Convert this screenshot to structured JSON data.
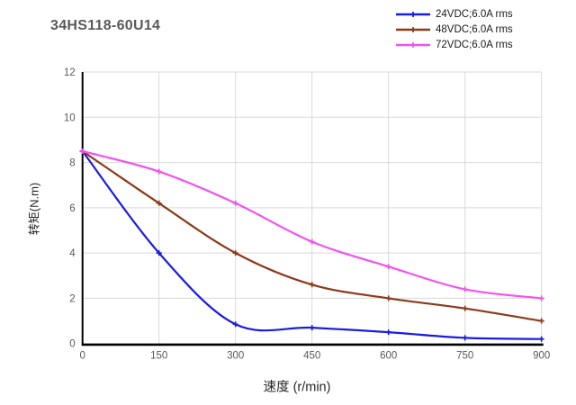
{
  "page": {
    "title": "34HS118-60U14"
  },
  "colors": {
    "background": "#ffffff",
    "axis": "#000000",
    "gridline": "#d9d9d9",
    "title_text": "#595959",
    "tick_text": "#595959",
    "legend_text": "#1a1a1a",
    "axis_title_text": "#262626"
  },
  "chart_data": {
    "type": "line",
    "title": "34HS118-60U14",
    "xlabel": "速度 (r/min)",
    "ylabel": "转矩(N.m)",
    "x": [
      0,
      150,
      300,
      450,
      600,
      750,
      900
    ],
    "x_ticks": [
      "0",
      "150",
      "300",
      "450",
      "600",
      "750",
      "900"
    ],
    "y_ticks": [
      "0",
      "2",
      "4",
      "6",
      "8",
      "10",
      "12"
    ],
    "xlim": [
      0,
      900
    ],
    "ylim": [
      0,
      12
    ],
    "grid": true,
    "line_style": "smooth",
    "marker": "plus",
    "legend_position": "top-right",
    "series": [
      {
        "name": "24VDC;6.0A rms",
        "color": "#1b1be0",
        "values": [
          8.5,
          4.0,
          0.85,
          0.7,
          0.5,
          0.25,
          0.2
        ]
      },
      {
        "name": "48VDC;6.0A rms",
        "color": "#8b3a1b",
        "values": [
          8.5,
          6.2,
          4.0,
          2.6,
          2.0,
          1.55,
          1.0
        ]
      },
      {
        "name": "72VDC;6.0A rms",
        "color": "#f053ef",
        "values": [
          8.5,
          7.6,
          6.2,
          4.5,
          3.4,
          2.4,
          2.0
        ]
      }
    ]
  }
}
